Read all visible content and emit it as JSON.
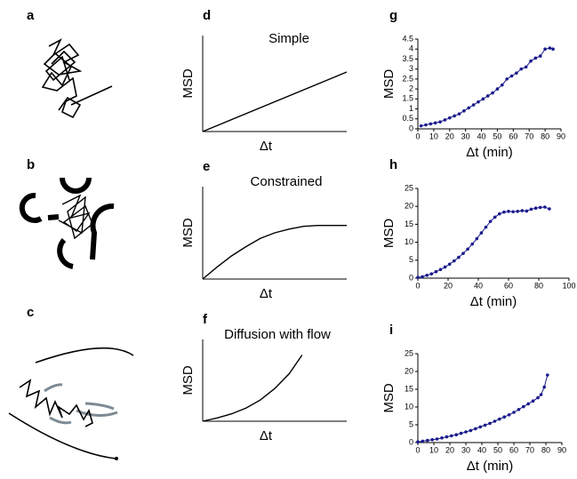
{
  "illustrations": [
    "a",
    "b",
    "c"
  ],
  "chart_data": [
    {
      "type": "line",
      "panel": "d",
      "title": "Simple",
      "ylabel": "MSD",
      "xlabel": "Δt",
      "x": [
        0,
        10
      ],
      "values": [
        0,
        6.2
      ],
      "color": "#000000",
      "xlim": [
        0,
        10
      ],
      "ylim": [
        0,
        10
      ]
    },
    {
      "type": "line",
      "panel": "e",
      "title": "Constrained",
      "ylabel": "MSD",
      "xlabel": "Δt",
      "x": [
        0,
        1,
        2,
        3,
        4,
        5,
        6,
        7,
        8,
        9,
        10
      ],
      "values": [
        0,
        1.3,
        2.5,
        3.5,
        4.4,
        5.0,
        5.4,
        5.7,
        5.8,
        5.8,
        5.8
      ],
      "color": "#000000",
      "xlim": [
        0,
        10
      ],
      "ylim": [
        0,
        10
      ]
    },
    {
      "type": "line",
      "panel": "f",
      "title": "Diffusion with flow",
      "ylabel": "MSD",
      "xlabel": "Δt",
      "x": [
        0,
        1,
        2,
        3,
        4,
        5,
        6,
        6.9
      ],
      "values": [
        0,
        0.4,
        0.9,
        1.6,
        2.6,
        4.0,
        5.8,
        8.1
      ],
      "color": "#000000",
      "xlim": [
        0,
        10
      ],
      "ylim": [
        0,
        10
      ]
    },
    {
      "type": "line",
      "marker": true,
      "panel": "g",
      "ylabel": "MSD",
      "xlabel": "Δt (min)",
      "x": [
        2,
        5,
        8,
        11,
        14,
        17,
        20,
        23,
        26,
        29,
        32,
        35,
        38,
        41,
        44,
        47,
        50,
        53,
        56,
        59,
        62,
        65,
        68,
        71,
        74,
        77,
        80,
        83,
        85
      ],
      "values": [
        0.15,
        0.2,
        0.25,
        0.3,
        0.35,
        0.45,
        0.55,
        0.65,
        0.75,
        0.9,
        1.05,
        1.2,
        1.35,
        1.5,
        1.65,
        1.8,
        2.0,
        2.2,
        2.5,
        2.65,
        2.8,
        3.0,
        3.1,
        3.4,
        3.55,
        3.65,
        4.0,
        4.05,
        4.0
      ],
      "color": "#1a1a8c",
      "xlim": [
        0,
        90
      ],
      "ylim": [
        0,
        4.5
      ],
      "xticks": [
        0,
        10,
        20,
        30,
        40,
        50,
        60,
        70,
        80,
        90
      ],
      "yticks": [
        0,
        0.5,
        1,
        1.5,
        2,
        2.5,
        3,
        3.5,
        4,
        4.5
      ]
    },
    {
      "type": "line",
      "marker": true,
      "panel": "h",
      "ylabel": "MSD",
      "xlabel": "Δt (min)",
      "x": [
        0,
        3,
        6,
        9,
        12,
        15,
        18,
        21,
        24,
        27,
        30,
        33,
        36,
        39,
        42,
        45,
        48,
        51,
        54,
        57,
        60,
        63,
        66,
        69,
        72,
        75,
        78,
        81,
        84,
        87
      ],
      "values": [
        0.2,
        0.4,
        0.8,
        1.2,
        1.8,
        2.4,
        3.1,
        3.9,
        4.8,
        5.8,
        6.9,
        8.1,
        9.5,
        11.0,
        12.6,
        14.2,
        15.8,
        17.0,
        17.9,
        18.4,
        18.6,
        18.5,
        18.6,
        18.8,
        18.7,
        19.2,
        19.5,
        19.7,
        19.8,
        19.3
      ],
      "color": "#1a1a8c",
      "xlim": [
        0,
        100
      ],
      "ylim": [
        0,
        25
      ],
      "xticks": [
        0,
        20,
        40,
        60,
        80,
        100
      ],
      "yticks": [
        0,
        5,
        10,
        15,
        20,
        25
      ]
    },
    {
      "type": "line",
      "marker": true,
      "panel": "i",
      "ylabel": "MSD",
      "xlabel": "Δt (min)",
      "x": [
        0,
        3,
        6,
        9,
        12,
        15,
        18,
        21,
        24,
        27,
        30,
        33,
        36,
        39,
        42,
        45,
        48,
        51,
        54,
        57,
        60,
        63,
        66,
        69,
        72,
        75,
        77,
        79,
        81
      ],
      "values": [
        0.2,
        0.4,
        0.6,
        0.8,
        1.0,
        1.3,
        1.6,
        1.9,
        2.2,
        2.6,
        3.0,
        3.4,
        3.9,
        4.4,
        4.9,
        5.4,
        6.0,
        6.6,
        7.2,
        7.8,
        8.5,
        9.3,
        10.1,
        10.9,
        11.7,
        12.6,
        13.5,
        15.6,
        19.0
      ],
      "color": "#1a1a8c",
      "xlim": [
        0,
        90
      ],
      "ylim": [
        0,
        25
      ],
      "xticks": [
        0,
        10,
        20,
        30,
        40,
        50,
        60,
        70,
        80,
        90
      ],
      "yticks": [
        0,
        5,
        10,
        15,
        20,
        25
      ]
    }
  ]
}
